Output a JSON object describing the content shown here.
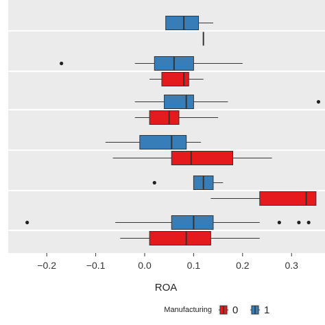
{
  "chart_data": {
    "type": "boxplot",
    "orientation": "horizontal",
    "title": "",
    "xlabel": "ROA",
    "ylabel": "",
    "xlim": [
      -0.29,
      0.33
    ],
    "x_ticks": [
      -0.2,
      -0.1,
      0.0,
      0.1,
      0.2,
      0.3
    ],
    "x_tick_labels": [
      "−0.2",
      "−0.1",
      "0.0",
      "0.1",
      "0.2",
      "0.3"
    ],
    "grid": {
      "x": false,
      "y": true
    },
    "legend": {
      "title": "Manufacturing",
      "position": "bottom",
      "entries": [
        {
          "label": "0",
          "color": "#E41A1C"
        },
        {
          "label": "1",
          "color": "#377EB8"
        }
      ]
    },
    "colors": {
      "0": "#E41A1C",
      "1": "#377EB8",
      "panel": "#EBEBEB",
      "grid": "#FFFFFF"
    },
    "groups": [
      {
        "group": 1,
        "boxes": [
          {
            "manufacturing": "1",
            "whisker_low": 0.043,
            "q1": 0.043,
            "median": 0.08,
            "q3": 0.11,
            "whisker_high": 0.14,
            "outliers": []
          },
          {
            "manufacturing": "0",
            "whisker_low": 0.12,
            "q1": 0.12,
            "median": 0.12,
            "q3": 0.12,
            "whisker_high": 0.12,
            "outliers": []
          }
        ]
      },
      {
        "group": 2,
        "boxes": [
          {
            "manufacturing": "1",
            "whisker_low": -0.02,
            "q1": 0.02,
            "median": 0.06,
            "q3": 0.1,
            "whisker_high": 0.2,
            "outliers": [
              -0.17
            ]
          },
          {
            "manufacturing": "0",
            "whisker_low": 0.01,
            "q1": 0.035,
            "median": 0.08,
            "q3": 0.09,
            "whisker_high": 0.12,
            "outliers": []
          }
        ]
      },
      {
        "group": 3,
        "boxes": [
          {
            "manufacturing": "1",
            "whisker_low": -0.02,
            "q1": 0.04,
            "median": 0.085,
            "q3": 0.1,
            "whisker_high": 0.17,
            "outliers": [
              0.355
            ]
          },
          {
            "manufacturing": "0",
            "whisker_low": -0.02,
            "q1": 0.01,
            "median": 0.05,
            "q3": 0.07,
            "whisker_high": 0.15,
            "outliers": []
          }
        ]
      },
      {
        "group": 4,
        "boxes": [
          {
            "manufacturing": "1",
            "whisker_low": -0.08,
            "q1": -0.01,
            "median": 0.055,
            "q3": 0.085,
            "whisker_high": 0.115,
            "outliers": []
          },
          {
            "manufacturing": "0",
            "whisker_low": -0.065,
            "q1": 0.055,
            "median": 0.095,
            "q3": 0.18,
            "whisker_high": 0.26,
            "outliers": []
          }
        ]
      },
      {
        "group": 5,
        "boxes": [
          {
            "manufacturing": "1",
            "whisker_low": 0.1,
            "q1": 0.1,
            "median": 0.12,
            "q3": 0.14,
            "whisker_high": 0.16,
            "outliers": [
              0.02
            ]
          },
          {
            "manufacturing": "0",
            "whisker_low": 0.135,
            "q1": 0.235,
            "median": 0.33,
            "q3": 0.35,
            "whisker_high": 0.35,
            "outliers": []
          }
        ]
      },
      {
        "group": 6,
        "boxes": [
          {
            "manufacturing": "1",
            "whisker_low": -0.06,
            "q1": 0.055,
            "median": 0.1,
            "q3": 0.14,
            "whisker_high": 0.235,
            "outliers": [
              -0.24,
              0.275,
              0.315,
              0.335
            ]
          },
          {
            "manufacturing": "0",
            "whisker_low": -0.05,
            "q1": 0.01,
            "median": 0.085,
            "q3": 0.135,
            "whisker_high": 0.235,
            "outliers": []
          }
        ]
      }
    ]
  }
}
